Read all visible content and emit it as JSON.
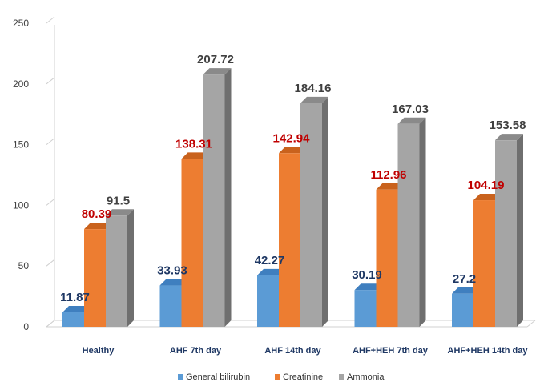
{
  "chart_data": {
    "type": "bar",
    "title": "",
    "xlabel": "",
    "ylabel": "",
    "ylim": [
      0,
      250
    ],
    "yticks": [
      0,
      50,
      100,
      150,
      200,
      250
    ],
    "categories": [
      "Healthy",
      "AHF 7th day",
      "AHF 14th day",
      "AHF+HEH 7th day",
      "AHF+HEH 14th day"
    ],
    "series": [
      {
        "name": "General bilirubin",
        "values": [
          11.87,
          33.93,
          42.27,
          30.19,
          27.2
        ],
        "labels": [
          "11.87",
          "33.93",
          "42.27",
          "30.19",
          "27.2"
        ]
      },
      {
        "name": "Creatinine",
        "values": [
          80.39,
          138.31,
          142.94,
          112.96,
          104.19
        ],
        "labels": [
          "80.39",
          "138.31",
          "142.94",
          "112.96",
          "104.19"
        ]
      },
      {
        "name": "Ammonia",
        "values": [
          91.5,
          207.72,
          184.16,
          167.03,
          153.58
        ],
        "labels": [
          "91.5",
          "207.72",
          "184.16",
          "167.03",
          "153.58"
        ]
      }
    ],
    "legend": "bottom",
    "grid": false
  },
  "colors": {
    "series_face": [
      "#5b9bd5",
      "#ed7d31",
      "#a5a5a5"
    ],
    "series_top": [
      "#3f7fbf",
      "#c9621d",
      "#8a8a8a"
    ],
    "series_side": [
      "#2f6aa8",
      "#b35517",
      "#6f6f6f"
    ],
    "label_colors": [
      "#1f3864",
      "#c00000",
      "#404040"
    ],
    "axis": "#d0d0d0"
  }
}
